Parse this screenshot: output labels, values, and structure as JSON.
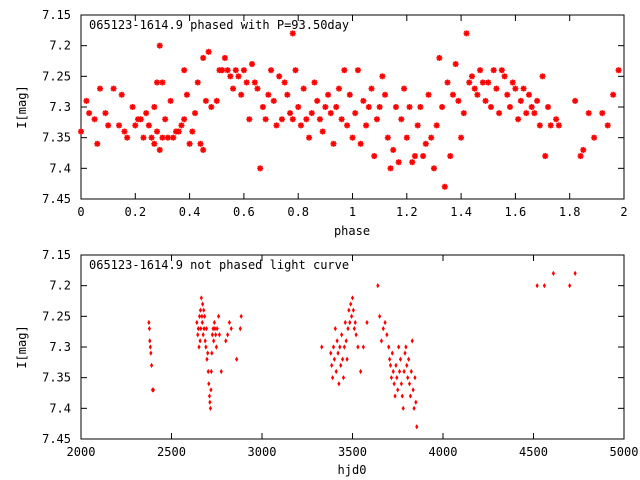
{
  "colors": {
    "points": "#ff0000",
    "axes": "#000000",
    "background": "#ffffff"
  },
  "chart_data": [
    {
      "type": "scatter",
      "title": "065123-1614.9 phased with P=93.50day",
      "xlabel": "phase",
      "ylabel": "I[mag]",
      "xlim": [
        0,
        2
      ],
      "ylim": [
        7.15,
        7.45
      ],
      "y_inverted": true,
      "grid": false,
      "marker": "star",
      "xticks": [
        "0",
        "0.2",
        "0.4",
        "0.6",
        "0.8",
        "1",
        "1.2",
        "1.4",
        "1.6",
        "1.8",
        "2"
      ],
      "yticks": [
        "7.15",
        "7.2",
        "7.25",
        "7.3",
        "7.35",
        "7.4",
        "7.45"
      ],
      "points": [
        [
          0.0,
          7.34
        ],
        [
          0.02,
          7.29
        ],
        [
          0.03,
          7.31
        ],
        [
          0.05,
          7.32
        ],
        [
          0.06,
          7.36
        ],
        [
          0.07,
          7.27
        ],
        [
          0.09,
          7.31
        ],
        [
          0.1,
          7.33
        ],
        [
          0.12,
          7.27
        ],
        [
          0.14,
          7.33
        ],
        [
          0.15,
          7.28
        ],
        [
          0.16,
          7.34
        ],
        [
          0.17,
          7.35
        ],
        [
          0.19,
          7.3
        ],
        [
          0.2,
          7.33
        ],
        [
          0.21,
          7.32
        ],
        [
          0.22,
          7.32
        ],
        [
          0.23,
          7.35
        ],
        [
          0.24,
          7.31
        ],
        [
          0.25,
          7.33
        ],
        [
          0.26,
          7.35
        ],
        [
          0.27,
          7.36
        ],
        [
          0.27,
          7.3
        ],
        [
          0.28,
          7.34
        ],
        [
          0.28,
          7.26
        ],
        [
          0.29,
          7.37
        ],
        [
          0.29,
          7.2
        ],
        [
          0.3,
          7.26
        ],
        [
          0.3,
          7.35
        ],
        [
          0.31,
          7.32
        ],
        [
          0.32,
          7.35
        ],
        [
          0.33,
          7.29
        ],
        [
          0.34,
          7.35
        ],
        [
          0.35,
          7.34
        ],
        [
          0.36,
          7.34
        ],
        [
          0.37,
          7.33
        ],
        [
          0.38,
          7.32
        ],
        [
          0.38,
          7.24
        ],
        [
          0.39,
          7.28
        ],
        [
          0.4,
          7.36
        ],
        [
          0.41,
          7.34
        ],
        [
          0.42,
          7.31
        ],
        [
          0.43,
          7.26
        ],
        [
          0.44,
          7.36
        ],
        [
          0.45,
          7.22
        ],
        [
          0.45,
          7.37
        ],
        [
          0.46,
          7.29
        ],
        [
          0.47,
          7.21
        ],
        [
          0.48,
          7.3
        ],
        [
          0.5,
          7.29
        ],
        [
          0.51,
          7.24
        ],
        [
          0.52,
          7.24
        ],
        [
          0.53,
          7.22
        ],
        [
          0.54,
          7.24
        ],
        [
          0.55,
          7.25
        ],
        [
          0.56,
          7.27
        ],
        [
          0.57,
          7.24
        ],
        [
          0.58,
          7.25
        ],
        [
          0.59,
          7.28
        ],
        [
          0.6,
          7.24
        ],
        [
          0.61,
          7.26
        ],
        [
          0.62,
          7.32
        ],
        [
          0.63,
          7.23
        ],
        [
          0.64,
          7.26
        ],
        [
          0.65,
          7.27
        ],
        [
          0.66,
          7.4
        ],
        [
          0.67,
          7.3
        ],
        [
          0.68,
          7.32
        ],
        [
          0.69,
          7.28
        ],
        [
          0.7,
          7.24
        ],
        [
          0.71,
          7.29
        ],
        [
          0.72,
          7.33
        ],
        [
          0.73,
          7.25
        ],
        [
          0.74,
          7.32
        ],
        [
          0.75,
          7.26
        ],
        [
          0.76,
          7.28
        ],
        [
          0.77,
          7.31
        ],
        [
          0.78,
          7.18
        ],
        [
          0.78,
          7.32
        ],
        [
          0.79,
          7.24
        ],
        [
          0.8,
          7.3
        ],
        [
          0.81,
          7.33
        ],
        [
          0.82,
          7.27
        ],
        [
          0.83,
          7.32
        ],
        [
          0.84,
          7.35
        ],
        [
          0.85,
          7.31
        ],
        [
          0.86,
          7.26
        ],
        [
          0.87,
          7.29
        ],
        [
          0.88,
          7.32
        ],
        [
          0.89,
          7.34
        ],
        [
          0.9,
          7.3
        ],
        [
          0.91,
          7.28
        ],
        [
          0.92,
          7.31
        ],
        [
          0.93,
          7.36
        ],
        [
          0.94,
          7.3
        ],
        [
          0.95,
          7.27
        ],
        [
          0.96,
          7.32
        ],
        [
          0.97,
          7.24
        ],
        [
          0.98,
          7.33
        ],
        [
          0.99,
          7.28
        ],
        [
          1.0,
          7.35
        ],
        [
          1.01,
          7.31
        ],
        [
          1.02,
          7.24
        ],
        [
          1.03,
          7.36
        ],
        [
          1.04,
          7.29
        ],
        [
          1.05,
          7.33
        ],
        [
          1.06,
          7.3
        ],
        [
          1.07,
          7.27
        ],
        [
          1.08,
          7.38
        ],
        [
          1.09,
          7.32
        ],
        [
          1.1,
          7.3
        ],
        [
          1.11,
          7.25
        ],
        [
          1.12,
          7.28
        ],
        [
          1.13,
          7.35
        ],
        [
          1.14,
          7.4
        ],
        [
          1.15,
          7.37
        ],
        [
          1.16,
          7.3
        ],
        [
          1.17,
          7.39
        ],
        [
          1.18,
          7.32
        ],
        [
          1.19,
          7.27
        ],
        [
          1.2,
          7.35
        ],
        [
          1.21,
          7.3
        ],
        [
          1.22,
          7.39
        ],
        [
          1.23,
          7.38
        ],
        [
          1.24,
          7.33
        ],
        [
          1.25,
          7.3
        ],
        [
          1.26,
          7.38
        ],
        [
          1.27,
          7.36
        ],
        [
          1.28,
          7.28
        ],
        [
          1.29,
          7.35
        ],
        [
          1.3,
          7.4
        ],
        [
          1.31,
          7.33
        ],
        [
          1.32,
          7.22
        ],
        [
          1.33,
          7.3
        ],
        [
          1.34,
          7.43
        ],
        [
          1.35,
          7.26
        ],
        [
          1.36,
          7.38
        ],
        [
          1.37,
          7.28
        ],
        [
          1.38,
          7.23
        ],
        [
          1.39,
          7.29
        ],
        [
          1.4,
          7.35
        ],
        [
          1.41,
          7.31
        ],
        [
          1.42,
          7.18
        ],
        [
          1.43,
          7.26
        ],
        [
          1.44,
          7.25
        ],
        [
          1.45,
          7.27
        ],
        [
          1.46,
          7.28
        ],
        [
          1.47,
          7.24
        ],
        [
          1.48,
          7.26
        ],
        [
          1.49,
          7.29
        ],
        [
          1.5,
          7.26
        ],
        [
          1.51,
          7.3
        ],
        [
          1.52,
          7.24
        ],
        [
          1.53,
          7.27
        ],
        [
          1.54,
          7.31
        ],
        [
          1.55,
          7.24
        ],
        [
          1.56,
          7.25
        ],
        [
          1.57,
          7.28
        ],
        [
          1.58,
          7.3
        ],
        [
          1.59,
          7.26
        ],
        [
          1.6,
          7.27
        ],
        [
          1.61,
          7.32
        ],
        [
          1.62,
          7.29
        ],
        [
          1.63,
          7.27
        ],
        [
          1.64,
          7.31
        ],
        [
          1.65,
          7.28
        ],
        [
          1.66,
          7.3
        ],
        [
          1.67,
          7.31
        ],
        [
          1.68,
          7.29
        ],
        [
          1.69,
          7.33
        ],
        [
          1.7,
          7.25
        ],
        [
          1.71,
          7.38
        ],
        [
          1.72,
          7.3
        ],
        [
          1.73,
          7.33
        ],
        [
          1.75,
          7.32
        ],
        [
          1.76,
          7.33
        ],
        [
          1.82,
          7.29
        ],
        [
          1.84,
          7.38
        ],
        [
          1.85,
          7.37
        ],
        [
          1.87,
          7.31
        ],
        [
          1.89,
          7.35
        ],
        [
          1.92,
          7.31
        ],
        [
          1.94,
          7.33
        ],
        [
          1.96,
          7.28
        ],
        [
          1.98,
          7.24
        ]
      ]
    },
    {
      "type": "scatter",
      "title": "065123-1614.9 not phased light curve",
      "xlabel": "hjd0",
      "ylabel": "I[mag]",
      "xlim": [
        2000,
        5000
      ],
      "ylim": [
        7.15,
        7.45
      ],
      "y_inverted": true,
      "grid": false,
      "marker": "diamond",
      "xticks": [
        "2000",
        "2500",
        "3000",
        "3500",
        "4000",
        "4500",
        "5000"
      ],
      "yticks": [
        "7.15",
        "7.2",
        "7.25",
        "7.3",
        "7.35",
        "7.4",
        "7.45"
      ],
      "points": [
        [
          2375,
          7.26
        ],
        [
          2378,
          7.27
        ],
        [
          2380,
          7.29
        ],
        [
          2383,
          7.3
        ],
        [
          2386,
          7.31
        ],
        [
          2390,
          7.33
        ],
        [
          2395,
          7.37
        ],
        [
          2400,
          7.37
        ],
        [
          2640,
          7.26
        ],
        [
          2645,
          7.28
        ],
        [
          2648,
          7.27
        ],
        [
          2652,
          7.3
        ],
        [
          2655,
          7.25
        ],
        [
          2658,
          7.29
        ],
        [
          2660,
          7.24
        ],
        [
          2662,
          7.27
        ],
        [
          2665,
          7.22
        ],
        [
          2668,
          7.25
        ],
        [
          2670,
          7.26
        ],
        [
          2672,
          7.23
        ],
        [
          2675,
          7.28
        ],
        [
          2678,
          7.24
        ],
        [
          2680,
          7.27
        ],
        [
          2683,
          7.25
        ],
        [
          2686,
          7.29
        ],
        [
          2690,
          7.3
        ],
        [
          2693,
          7.27
        ],
        [
          2696,
          7.32
        ],
        [
          2700,
          7.31
        ],
        [
          2703,
          7.34
        ],
        [
          2706,
          7.36
        ],
        [
          2710,
          7.38
        ],
        [
          2712,
          7.39
        ],
        [
          2715,
          7.4
        ],
        [
          2718,
          7.37
        ],
        [
          2720,
          7.34
        ],
        [
          2723,
          7.31
        ],
        [
          2726,
          7.28
        ],
        [
          2730,
          7.27
        ],
        [
          2733,
          7.29
        ],
        [
          2737,
          7.26
        ],
        [
          2740,
          7.27
        ],
        [
          2744,
          7.28
        ],
        [
          2748,
          7.3
        ],
        [
          2752,
          7.27
        ],
        [
          2760,
          7.25
        ],
        [
          2765,
          7.28
        ],
        [
          2775,
          7.34
        ],
        [
          2800,
          7.29
        ],
        [
          2810,
          7.28
        ],
        [
          2820,
          7.26
        ],
        [
          2830,
          7.27
        ],
        [
          2860,
          7.32
        ],
        [
          2880,
          7.27
        ],
        [
          2885,
          7.25
        ],
        [
          3330,
          7.3
        ],
        [
          3380,
          7.31
        ],
        [
          3385,
          7.33
        ],
        [
          3390,
          7.35
        ],
        [
          3395,
          7.3
        ],
        [
          3400,
          7.32
        ],
        [
          3405,
          7.27
        ],
        [
          3410,
          7.34
        ],
        [
          3415,
          7.29
        ],
        [
          3420,
          7.31
        ],
        [
          3425,
          7.36
        ],
        [
          3430,
          7.3
        ],
        [
          3435,
          7.33
        ],
        [
          3440,
          7.28
        ],
        [
          3445,
          7.32
        ],
        [
          3450,
          7.35
        ],
        [
          3455,
          7.3
        ],
        [
          3460,
          7.26
        ],
        [
          3465,
          7.29
        ],
        [
          3470,
          7.32
        ],
        [
          3475,
          7.27
        ],
        [
          3480,
          7.24
        ],
        [
          3485,
          7.26
        ],
        [
          3490,
          7.23
        ],
        [
          3495,
          7.25
        ],
        [
          3500,
          7.22
        ],
        [
          3505,
          7.24
        ],
        [
          3510,
          7.27
        ],
        [
          3515,
          7.26
        ],
        [
          3520,
          7.28
        ],
        [
          3530,
          7.3
        ],
        [
          3545,
          7.34
        ],
        [
          3560,
          7.3
        ],
        [
          3580,
          7.26
        ],
        [
          3640,
          7.2
        ],
        [
          3650,
          7.25
        ],
        [
          3660,
          7.29
        ],
        [
          3670,
          7.27
        ],
        [
          3680,
          7.26
        ],
        [
          3690,
          7.28
        ],
        [
          3700,
          7.3
        ],
        [
          3705,
          7.32
        ],
        [
          3710,
          7.33
        ],
        [
          3715,
          7.35
        ],
        [
          3720,
          7.31
        ],
        [
          3725,
          7.34
        ],
        [
          3730,
          7.36
        ],
        [
          3735,
          7.38
        ],
        [
          3740,
          7.33
        ],
        [
          3745,
          7.35
        ],
        [
          3750,
          7.37
        ],
        [
          3755,
          7.3
        ],
        [
          3760,
          7.34
        ],
        [
          3765,
          7.32
        ],
        [
          3770,
          7.36
        ],
        [
          3775,
          7.38
        ],
        [
          3780,
          7.4
        ],
        [
          3785,
          7.34
        ],
        [
          3790,
          7.31
        ],
        [
          3795,
          7.3
        ],
        [
          3800,
          7.33
        ],
        [
          3805,
          7.35
        ],
        [
          3810,
          7.32
        ],
        [
          3815,
          7.36
        ],
        [
          3820,
          7.38
        ],
        [
          3825,
          7.34
        ],
        [
          3830,
          7.29
        ],
        [
          3835,
          7.37
        ],
        [
          3840,
          7.4
        ],
        [
          3845,
          7.35
        ],
        [
          3850,
          7.39
        ],
        [
          3855,
          7.43
        ],
        [
          4520,
          7.2
        ],
        [
          4560,
          7.2
        ],
        [
          4610,
          7.18
        ],
        [
          4700,
          7.2
        ],
        [
          4730,
          7.18
        ]
      ]
    }
  ]
}
